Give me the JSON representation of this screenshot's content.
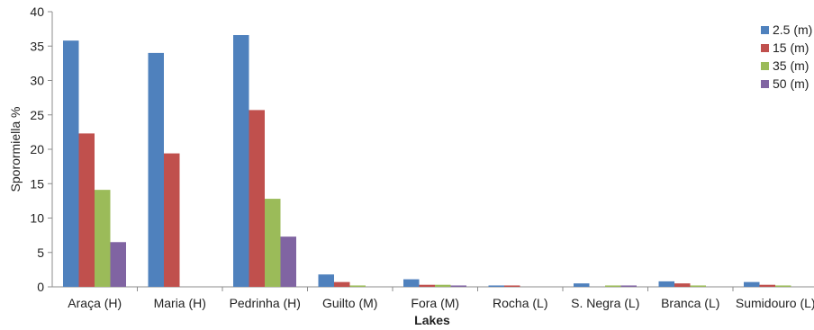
{
  "chart_data": {
    "type": "bar",
    "title": "",
    "xlabel": "Lakes",
    "ylabel": "Sporormiella %",
    "ylim": [
      0,
      40
    ],
    "yticks": [
      0,
      5,
      10,
      15,
      20,
      25,
      30,
      35,
      40
    ],
    "grid": false,
    "legend_position": "top-right",
    "categories": [
      "Araça (H)",
      "Maria (H)",
      "Pedrinha (H)",
      "Guilto (M)",
      "Fora (M)",
      "Rocha (L)",
      "S. Negra (L)",
      "Branca (L)",
      "Sumidouro (L)"
    ],
    "series": [
      {
        "name": "2.5 (m)",
        "color": "#4f81bd",
        "values": [
          35.8,
          34.0,
          36.6,
          1.8,
          1.1,
          0.2,
          0.5,
          0.8,
          0.7
        ]
      },
      {
        "name": "15 (m)",
        "color": "#c0504d",
        "values": [
          22.3,
          19.4,
          25.7,
          0.7,
          0.3,
          0.2,
          0.0,
          0.5,
          0.3
        ]
      },
      {
        "name": "35 (m)",
        "color": "#9bbb59",
        "values": [
          14.1,
          0,
          12.8,
          0.2,
          0.3,
          0,
          0.2,
          0.2,
          0.2
        ]
      },
      {
        "name": "50 (m)",
        "color": "#8064a2",
        "values": [
          6.5,
          0,
          7.3,
          0,
          0.2,
          0,
          0.2,
          0,
          0
        ]
      }
    ]
  }
}
